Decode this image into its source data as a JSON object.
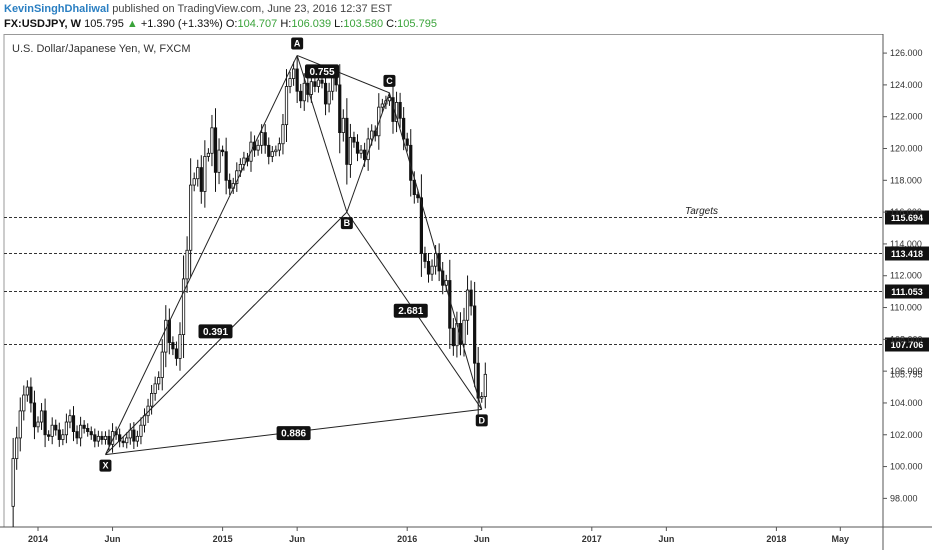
{
  "header": {
    "author": "KevinSinghDhaliwal",
    "published": "published on TradingView.com, June 23, 2016 12:37 EST",
    "symbol": "FX:USDJPY, W",
    "last": "105.795",
    "change": "+1.390 (+1.33%)",
    "o_label": "O:",
    "o_value": "104.707",
    "h_label": "H:",
    "h_value": "106.039",
    "l_label": "L:",
    "l_value": "103.580",
    "c_label": "C:",
    "c_value": "105.795",
    "up_color": "#3aa33a",
    "arrow_icon": "triangle-up"
  },
  "chart_data": {
    "type": "candlestick",
    "title": "U.S. Dollar/Japanese Yen, W, FXCM",
    "y_ticks": [
      "98.000",
      "100.000",
      "102.000",
      "104.000",
      "106.000",
      "108.000",
      "110.000",
      "112.000",
      "114.000",
      "116.000",
      "118.000",
      "120.000",
      "122.000",
      "124.000",
      "126.000"
    ],
    "ylim": [
      96.2,
      127.2
    ],
    "x_ticks": [
      {
        "label": "2014",
        "t": 0
      },
      {
        "label": "Jun",
        "t": 21
      },
      {
        "label": "2015",
        "t": 52
      },
      {
        "label": "Jun",
        "t": 73
      },
      {
        "label": "2016",
        "t": 104
      },
      {
        "label": "Jun",
        "t": 125
      },
      {
        "label": "2017",
        "t": 156
      },
      {
        "label": "Jun",
        "t": 177
      },
      {
        "label": "2018",
        "t": 208
      },
      {
        "label": "May",
        "t": 226
      }
    ],
    "x_unit_note": "weeks since start of 2014",
    "last_price_label": "105.795",
    "targets_label": "Targets",
    "targets": [
      115.694,
      113.418,
      111.053,
      107.706
    ],
    "pattern_points": [
      {
        "name": "X",
        "t": 19,
        "price": 100.75
      },
      {
        "name": "A",
        "t": 73,
        "price": 125.85
      },
      {
        "name": "B",
        "t": 87,
        "price": 116.0
      },
      {
        "name": "C",
        "t": 99,
        "price": 123.5
      },
      {
        "name": "D",
        "t": 125,
        "price": 103.6
      }
    ],
    "ratios": [
      {
        "label": "0.755",
        "t": 80,
        "price": 124.85
      },
      {
        "label": "0.391",
        "t": 50,
        "price": 108.5
      },
      {
        "label": "2.681",
        "t": 105,
        "price": 109.8
      },
      {
        "label": "0.886",
        "t": 72,
        "price": 102.1
      }
    ],
    "series_anchors": [
      [
        -8,
        97.5
      ],
      [
        -7,
        100.5
      ],
      [
        -6,
        101.8
      ],
      [
        -5,
        103.5
      ],
      [
        -4,
        104.5
      ],
      [
        -3,
        105.0
      ],
      [
        -2,
        104.0
      ],
      [
        -1,
        102.5
      ],
      [
        0,
        102.8
      ],
      [
        1,
        103.5
      ],
      [
        2,
        102.0
      ],
      [
        3,
        101.9
      ],
      [
        4,
        102.6
      ],
      [
        5,
        102.3
      ],
      [
        6,
        101.7
      ],
      [
        7,
        102.0
      ],
      [
        8,
        102.8
      ],
      [
        9,
        103.2
      ],
      [
        10,
        102.2
      ],
      [
        11,
        101.8
      ],
      [
        12,
        102.6
      ],
      [
        13,
        102.4
      ],
      [
        14,
        102.2
      ],
      [
        15,
        102.0
      ],
      [
        16,
        101.6
      ],
      [
        17,
        101.9
      ],
      [
        18,
        101.7
      ],
      [
        19,
        101.9
      ],
      [
        20,
        101.4
      ],
      [
        21,
        102.2
      ],
      [
        22,
        102.0
      ],
      [
        23,
        101.6
      ],
      [
        24,
        101.5
      ],
      [
        25,
        101.8
      ],
      [
        26,
        102.3
      ],
      [
        27,
        101.6
      ],
      [
        28,
        101.9
      ],
      [
        29,
        102.6
      ],
      [
        30,
        103.2
      ],
      [
        31,
        103.8
      ],
      [
        32,
        104.6
      ],
      [
        33,
        105.2
      ],
      [
        34,
        105.6
      ],
      [
        35,
        107.2
      ],
      [
        36,
        109.2
      ],
      [
        37,
        107.8
      ],
      [
        38,
        107.4
      ],
      [
        39,
        106.8
      ],
      [
        40,
        108.3
      ],
      [
        41,
        111.8
      ],
      [
        42,
        113.6
      ],
      [
        43,
        117.7
      ],
      [
        44,
        118.1
      ],
      [
        45,
        118.8
      ],
      [
        46,
        117.3
      ],
      [
        47,
        119.5
      ],
      [
        48,
        119.7
      ],
      [
        49,
        121.3
      ],
      [
        50,
        118.5
      ],
      [
        51,
        119.9
      ],
      [
        52,
        119.8
      ],
      [
        53,
        118.0
      ],
      [
        54,
        117.5
      ],
      [
        55,
        117.8
      ],
      [
        56,
        118.6
      ],
      [
        57,
        119.0
      ],
      [
        58,
        119.4
      ],
      [
        59,
        119.2
      ],
      [
        60,
        120.4
      ],
      [
        61,
        119.9
      ],
      [
        62,
        120.2
      ],
      [
        63,
        121.0
      ],
      [
        64,
        120.2
      ],
      [
        65,
        119.5
      ],
      [
        66,
        119.8
      ],
      [
        67,
        119.9
      ],
      [
        68,
        120.3
      ],
      [
        69,
        121.5
      ],
      [
        70,
        123.9
      ],
      [
        71,
        124.4
      ],
      [
        72,
        125.0
      ],
      [
        73,
        123.6
      ],
      [
        74,
        123.0
      ],
      [
        75,
        124.1
      ],
      [
        76,
        123.4
      ],
      [
        77,
        124.2
      ],
      [
        78,
        123.9
      ],
      [
        79,
        124.3
      ],
      [
        80,
        124.1
      ],
      [
        81,
        122.8
      ],
      [
        82,
        123.6
      ],
      [
        83,
        124.5
      ],
      [
        84,
        124.0
      ],
      [
        85,
        121.0
      ],
      [
        86,
        121.9
      ],
      [
        87,
        119.0
      ],
      [
        88,
        120.7
      ],
      [
        89,
        120.4
      ],
      [
        90,
        119.7
      ],
      [
        91,
        119.9
      ],
      [
        92,
        119.3
      ],
      [
        93,
        120.6
      ],
      [
        94,
        121.1
      ],
      [
        95,
        120.8
      ],
      [
        96,
        122.6
      ],
      [
        97,
        122.8
      ],
      [
        98,
        123.0
      ],
      [
        99,
        123.2
      ],
      [
        100,
        121.7
      ],
      [
        101,
        122.9
      ],
      [
        102,
        121.9
      ],
      [
        103,
        120.6
      ],
      [
        104,
        120.2
      ],
      [
        105,
        118.0
      ],
      [
        106,
        117.1
      ],
      [
        107,
        116.9
      ],
      [
        108,
        113.4
      ],
      [
        109,
        112.9
      ],
      [
        110,
        112.1
      ],
      [
        111,
        112.6
      ],
      [
        112,
        113.4
      ],
      [
        113,
        112.3
      ],
      [
        114,
        111.4
      ],
      [
        115,
        111.7
      ],
      [
        116,
        108.7
      ],
      [
        117,
        107.6
      ],
      [
        118,
        109.0
      ],
      [
        119,
        107.7
      ],
      [
        120,
        109.2
      ],
      [
        121,
        111.1
      ],
      [
        122,
        110.1
      ],
      [
        123,
        106.5
      ],
      [
        124,
        104.3
      ],
      [
        125,
        104.4
      ],
      [
        126,
        105.8
      ]
    ]
  }
}
